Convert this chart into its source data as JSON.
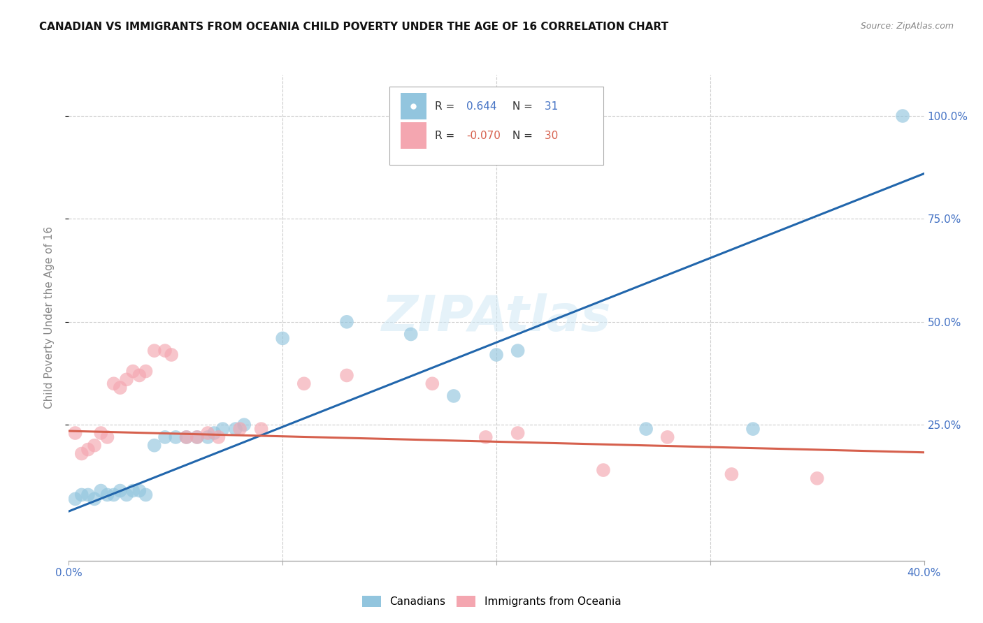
{
  "title": "CANADIAN VS IMMIGRANTS FROM OCEANIA CHILD POVERTY UNDER THE AGE OF 16 CORRELATION CHART",
  "source": "Source: ZipAtlas.com",
  "ylabel": "Child Poverty Under the Age of 16",
  "xlim": [
    0.0,
    0.4
  ],
  "ylim": [
    -0.08,
    1.1
  ],
  "ytick_values": [
    0.25,
    0.5,
    0.75,
    1.0
  ],
  "ytick_labels": [
    "25.0%",
    "50.0%",
    "75.0%",
    "100.0%"
  ],
  "canadian_color": "#92c5de",
  "immigrant_color": "#f4a6b0",
  "canadian_line_color": "#2166ac",
  "immigrant_line_color": "#d6604d",
  "R_canadian": 0.644,
  "N_canadian": 31,
  "R_immigrant": -0.07,
  "N_immigrant": 30,
  "canadian_regression": {
    "slope": 2.05,
    "intercept": 0.04
  },
  "immigrant_regression": {
    "slope": -0.13,
    "intercept": 0.235
  },
  "canadian_points": [
    [
      0.003,
      0.07
    ],
    [
      0.006,
      0.08
    ],
    [
      0.009,
      0.08
    ],
    [
      0.012,
      0.07
    ],
    [
      0.015,
      0.09
    ],
    [
      0.018,
      0.08
    ],
    [
      0.021,
      0.08
    ],
    [
      0.024,
      0.09
    ],
    [
      0.027,
      0.08
    ],
    [
      0.03,
      0.09
    ],
    [
      0.033,
      0.09
    ],
    [
      0.036,
      0.08
    ],
    [
      0.04,
      0.2
    ],
    [
      0.045,
      0.22
    ],
    [
      0.05,
      0.22
    ],
    [
      0.055,
      0.22
    ],
    [
      0.06,
      0.22
    ],
    [
      0.065,
      0.22
    ],
    [
      0.068,
      0.23
    ],
    [
      0.072,
      0.24
    ],
    [
      0.078,
      0.24
    ],
    [
      0.082,
      0.25
    ],
    [
      0.1,
      0.46
    ],
    [
      0.13,
      0.5
    ],
    [
      0.16,
      0.47
    ],
    [
      0.18,
      0.32
    ],
    [
      0.2,
      0.42
    ],
    [
      0.21,
      0.43
    ],
    [
      0.27,
      0.24
    ],
    [
      0.32,
      0.24
    ],
    [
      0.39,
      1.0
    ]
  ],
  "immigrant_points": [
    [
      0.003,
      0.23
    ],
    [
      0.006,
      0.18
    ],
    [
      0.009,
      0.19
    ],
    [
      0.012,
      0.2
    ],
    [
      0.015,
      0.23
    ],
    [
      0.018,
      0.22
    ],
    [
      0.021,
      0.35
    ],
    [
      0.024,
      0.34
    ],
    [
      0.027,
      0.36
    ],
    [
      0.03,
      0.38
    ],
    [
      0.033,
      0.37
    ],
    [
      0.036,
      0.38
    ],
    [
      0.04,
      0.43
    ],
    [
      0.045,
      0.43
    ],
    [
      0.048,
      0.42
    ],
    [
      0.055,
      0.22
    ],
    [
      0.06,
      0.22
    ],
    [
      0.065,
      0.23
    ],
    [
      0.07,
      0.22
    ],
    [
      0.08,
      0.24
    ],
    [
      0.09,
      0.24
    ],
    [
      0.11,
      0.35
    ],
    [
      0.13,
      0.37
    ],
    [
      0.17,
      0.35
    ],
    [
      0.195,
      0.22
    ],
    [
      0.21,
      0.23
    ],
    [
      0.25,
      0.14
    ],
    [
      0.28,
      0.22
    ],
    [
      0.31,
      0.13
    ],
    [
      0.35,
      0.12
    ]
  ]
}
